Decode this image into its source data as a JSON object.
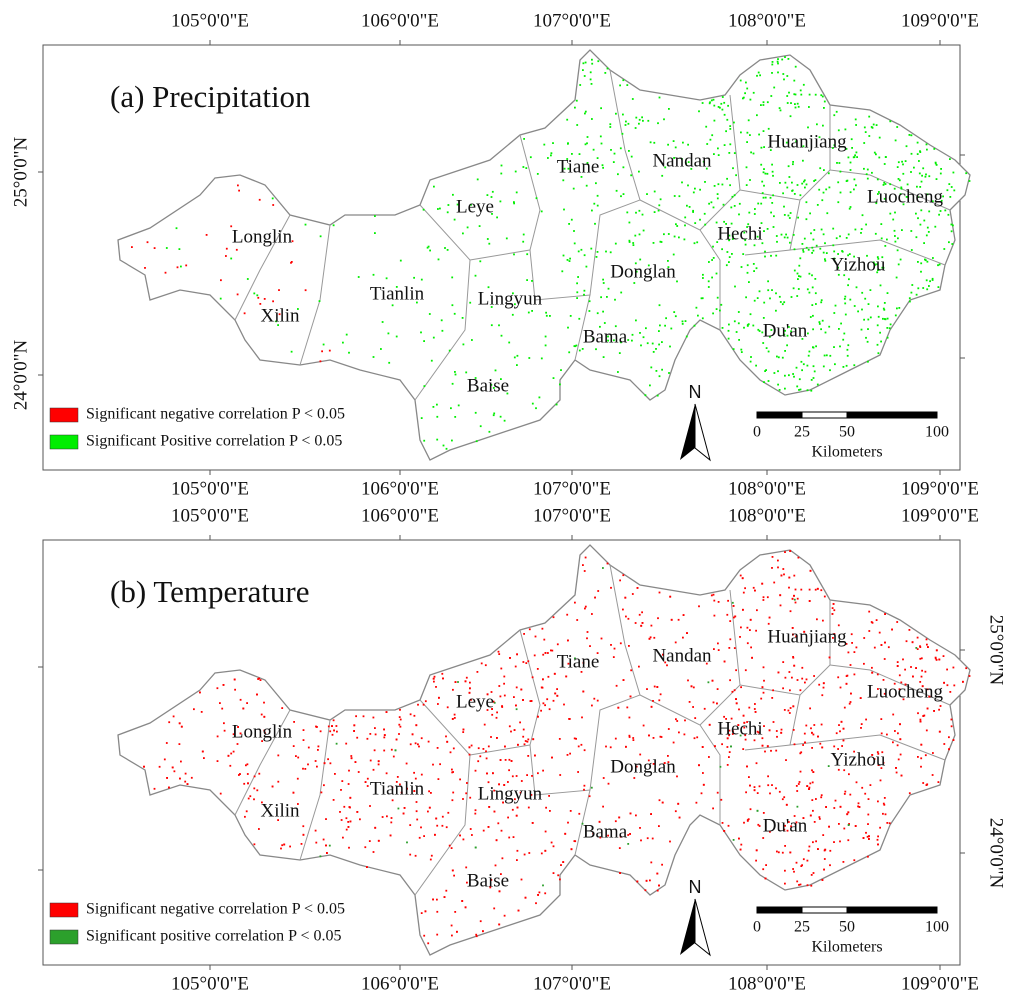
{
  "panels": [
    {
      "title": "(a) Precipitation",
      "lon_labels_top": [
        "105°0'0\"E",
        "106°0'0\"E",
        "107°0'0\"E",
        "108°0'0\"E",
        "109°0'0\"E"
      ],
      "lon_labels_bottom": [
        "105°0'0\"E",
        "106°0'0\"E",
        "107°0'0\"E",
        "108°0'0\"E",
        "109°0'0\"E"
      ],
      "lat_labels": [
        "25°0'0\"N",
        "24°0'0\"N"
      ],
      "counties": [
        "Longlin",
        "Xilin",
        "Tianlin",
        "Lingyun",
        "Leye",
        "Tiane",
        "Nandan",
        "Huanjiang",
        "Luocheng",
        "Hechi",
        "Donglan",
        "Yizhou",
        "Du'an",
        "Bama",
        "Baise"
      ],
      "legend": [
        {
          "label": "Significant negative correlation  P < 0.05",
          "color": "#ff0000"
        },
        {
          "label": "Significant Positive correlation  P < 0.05",
          "color": "#00ee00"
        }
      ],
      "north": "N",
      "scale": {
        "ticks": [
          0,
          25,
          50,
          100
        ],
        "unit": "Kilometers"
      }
    },
    {
      "title": "(b) Temperature",
      "lon_labels_top": [
        "105°0'0\"E",
        "106°0'0\"E",
        "107°0'0\"E",
        "108°0'0\"E",
        "109°0'0\"E"
      ],
      "lon_labels_bottom": [
        "105°0'0\"E",
        "106°0'0\"E",
        "107°0'0\"E",
        "108°0'0\"E",
        "109°0'0\"E"
      ],
      "lat_labels": [
        "25°0'0\"N",
        "24°0'0\"N"
      ],
      "counties": [
        "Longlin",
        "Xilin",
        "Tianlin",
        "Lingyun",
        "Leye",
        "Tiane",
        "Nandan",
        "Huanjiang",
        "Luocheng",
        "Hechi",
        "Donglan",
        "Yizhou",
        "Du'an",
        "Bama",
        "Baise"
      ],
      "legend": [
        {
          "label": "Significant negative correlation P < 0.05",
          "color": "#ff0000"
        },
        {
          "label": "Significant positive correlation P < 0.05",
          "color": "#2ca02c"
        }
      ],
      "north": "N",
      "scale": {
        "ticks": [
          0,
          25,
          50,
          100
        ],
        "unit": "Kilometers"
      }
    }
  ]
}
